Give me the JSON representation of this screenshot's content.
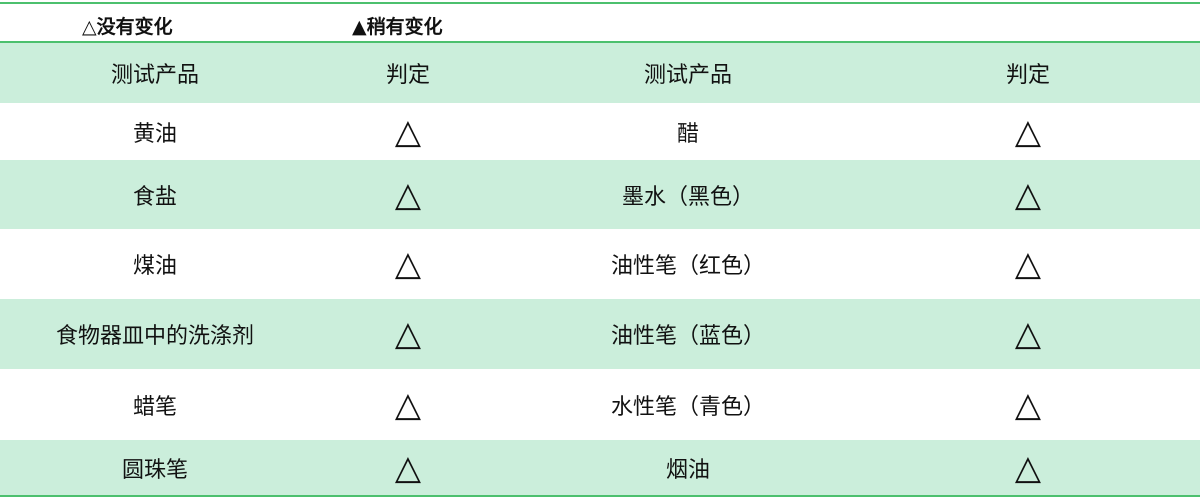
{
  "legend": {
    "no_change": "△没有变化",
    "slight_change": "▲稍有变化"
  },
  "header": {
    "product": "测试产品",
    "result": "判定",
    "product2": "测试产品",
    "result2": "判定"
  },
  "rows": [
    {
      "product": "黄油",
      "result": "△",
      "product2": "醋",
      "result2": "△"
    },
    {
      "product": "食盐",
      "result": "△",
      "product2": "墨水（黑色）",
      "result2": "△"
    },
    {
      "product": "煤油",
      "result": "△",
      "product2": "油性笔（红色）",
      "result2": "△"
    },
    {
      "product": "食物器皿中的洗涤剂",
      "result": "△",
      "product2": "油性笔（蓝色）",
      "result2": "△"
    },
    {
      "product": "蜡笔",
      "result": "△",
      "product2": "水性笔（青色）",
      "result2": "△"
    },
    {
      "product": "圆珠笔",
      "result": "△",
      "product2": "烟油",
      "result2": "△"
    }
  ],
  "colors": {
    "accent_line": "#4cc06e",
    "row_green": "#cbeedb"
  }
}
